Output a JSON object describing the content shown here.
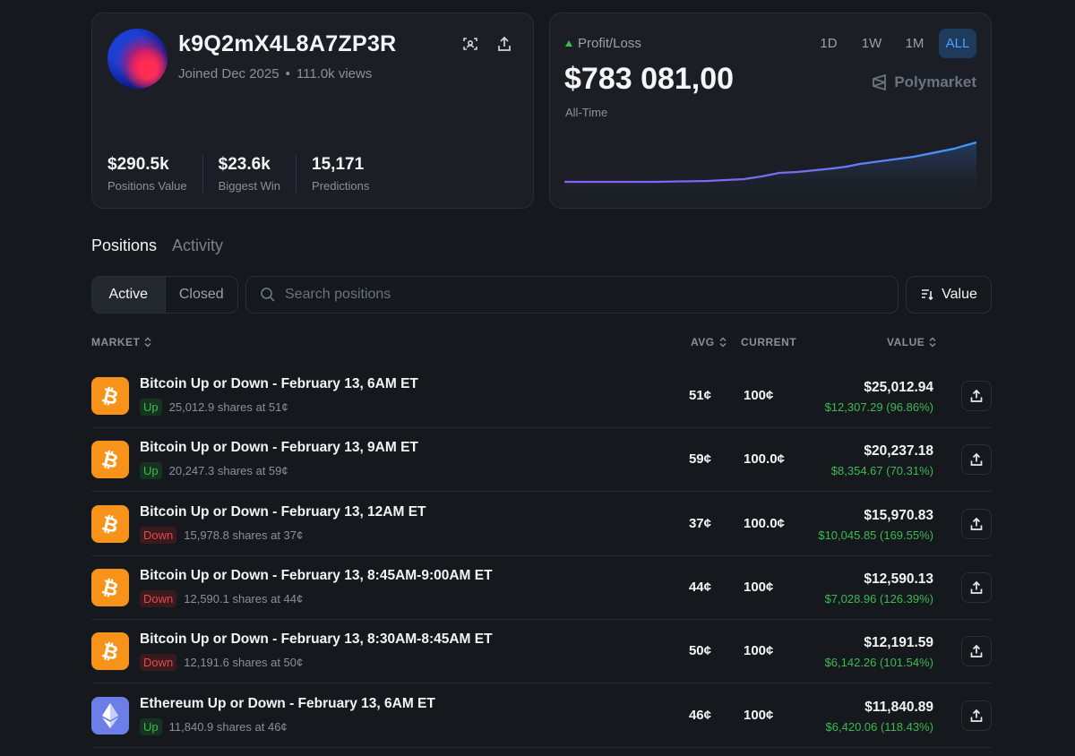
{
  "profile": {
    "username": "k9Q2mX4L8A7ZP3R",
    "joined": "Joined Dec 2025",
    "separator": "•",
    "views": "111.0k views",
    "stats": [
      {
        "value": "$290.5k",
        "label": "Positions Value"
      },
      {
        "value": "$23.6k",
        "label": "Biggest Win"
      },
      {
        "value": "15,171",
        "label": "Predictions"
      }
    ]
  },
  "pnl": {
    "label": "Profit/Loss",
    "value": "$783 081,00",
    "period": "All-Time",
    "ranges": [
      "1D",
      "1W",
      "1M",
      "ALL"
    ],
    "active_range": "ALL",
    "brand": "Polymarket",
    "colors": {
      "line_start": "#8b5cf6",
      "line_end": "#3b9dff",
      "up": "#3fb950"
    }
  },
  "tabs": {
    "positions": "Positions",
    "activity": "Activity"
  },
  "filters": {
    "active": "Active",
    "closed": "Closed",
    "search_placeholder": "Search positions",
    "sort_label": "Value"
  },
  "table": {
    "headers": {
      "market": "MARKET",
      "avg": "AVG",
      "current": "CURRENT",
      "value": "VALUE"
    },
    "rows": [
      {
        "coin": "btc",
        "title": "Bitcoin Up or Down - February 13, 6AM ET",
        "outcome": "Up",
        "shares": "25,012.9 shares at 51¢",
        "avg": "51¢",
        "current": "100¢",
        "value": "$25,012.94",
        "pnl": "$12,307.29 (96.86%)"
      },
      {
        "coin": "btc",
        "title": "Bitcoin Up or Down - February 13, 9AM ET",
        "outcome": "Up",
        "shares": "20,247.3 shares at 59¢",
        "avg": "59¢",
        "current": "100.0¢",
        "value": "$20,237.18",
        "pnl": "$8,354.67 (70.31%)"
      },
      {
        "coin": "btc",
        "title": "Bitcoin Up or Down - February 13, 12AM ET",
        "outcome": "Down",
        "shares": "15,978.8 shares at 37¢",
        "avg": "37¢",
        "current": "100.0¢",
        "value": "$15,970.83",
        "pnl": "$10,045.85 (169.55%)"
      },
      {
        "coin": "btc",
        "title": "Bitcoin Up or Down - February 13, 8:45AM-9:00AM ET",
        "outcome": "Down",
        "shares": "12,590.1 shares at 44¢",
        "avg": "44¢",
        "current": "100¢",
        "value": "$12,590.13",
        "pnl": "$7,028.96 (126.39%)"
      },
      {
        "coin": "btc",
        "title": "Bitcoin Up or Down - February 13, 8:30AM-8:45AM ET",
        "outcome": "Down",
        "shares": "12,191.6 shares at 50¢",
        "avg": "50¢",
        "current": "100¢",
        "value": "$12,191.59",
        "pnl": "$6,142.26 (101.54%)"
      },
      {
        "coin": "eth",
        "title": "Ethereum Up or Down - February 13, 6AM ET",
        "outcome": "Up",
        "shares": "11,840.9 shares at 46¢",
        "avg": "46¢",
        "current": "100¢",
        "value": "$11,840.89",
        "pnl": "$6,420.06 (118.43%)"
      }
    ]
  }
}
